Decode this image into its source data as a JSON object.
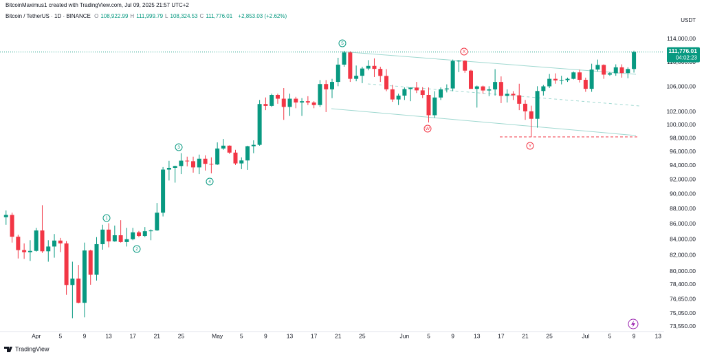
{
  "header": {
    "credit": "BitcoinMaximus1 created with TradingView.com, Jul 09, 2025 21:57 UTC+2",
    "symbol": "Bitcoin / TetherUS · 1D · BINANCE",
    "ohlc": [
      {
        "label": "O",
        "value": "108,922.99"
      },
      {
        "label": "H",
        "value": "111,999.79"
      },
      {
        "label": "L",
        "value": "108,324.53"
      },
      {
        "label": "C",
        "value": "111,776.01"
      }
    ],
    "change": "+2,853.03 (+2.62%)"
  },
  "currency": "USDT",
  "last_price_label": "111,776.01",
  "countdown": "04:02:23",
  "logo": "TradingView",
  "waves": [
    "1",
    "2",
    "3",
    "4",
    "5",
    "W",
    "X",
    "Y"
  ],
  "chart_data": {
    "type": "candlestick",
    "log_scale": true,
    "grid": false,
    "up_color": "#089981",
    "down_color": "#f23645",
    "x": [
      -5,
      -4,
      -3,
      -2,
      -1,
      0,
      1,
      2,
      3,
      4,
      5,
      6,
      7,
      8,
      9,
      10,
      11,
      12,
      13,
      14,
      15,
      16,
      17,
      18,
      19,
      20,
      21,
      22,
      23,
      24,
      25,
      26,
      27,
      28,
      29,
      30,
      31,
      32,
      33,
      34,
      35,
      36,
      37,
      38,
      39,
      40,
      41,
      42,
      43,
      44,
      45,
      46,
      47,
      48,
      49,
      50,
      51,
      52,
      53,
      54,
      55,
      56,
      57,
      58,
      59,
      60,
      61,
      62,
      63,
      64,
      65,
      66,
      67,
      68,
      69,
      70,
      71,
      72,
      73,
      74,
      75,
      76,
      77,
      78,
      79,
      80,
      81,
      82,
      83,
      84,
      85,
      86,
      87,
      88,
      89,
      90,
      91,
      92,
      93,
      94,
      95,
      96,
      97,
      98,
      99
    ],
    "open": [
      86900,
      87200,
      84350,
      82650,
      82390,
      82550,
      85160,
      82500,
      83100,
      83860,
      83500,
      78370,
      79140,
      76270,
      82600,
      79600,
      83400,
      85270,
      83760,
      84540,
      83670,
      84030,
      84920,
      84450,
      85060,
      85170,
      87500,
      93440,
      93690,
      93950,
      94720,
      94640,
      93750,
      95000,
      94260,
      94170,
      96490,
      96910,
      95890,
      94320,
      94750,
      96830,
      97030,
      103260,
      102970,
      104700,
      104100,
      102800,
      104100,
      103500,
      103700,
      103500,
      103100,
      106450,
      105600,
      106800,
      109650,
      111700,
      107300,
      107800,
      109000,
      109440,
      108940,
      107780,
      105600,
      103980,
      104590,
      105640,
      105880,
      105430,
      104700,
      101510,
      104290,
      105600,
      105740,
      110260,
      110300,
      108650,
      105670,
      106070,
      105410,
      105590,
      106790,
      104550,
      104880,
      104640,
      103300,
      102120,
      100960,
      105330,
      106080,
      107300,
      107040,
      107090,
      107300,
      108360,
      107140,
      105680,
      108830,
      109600,
      107990,
      108220,
      109200,
      108260,
      108922.99
    ],
    "high": [
      87800,
      87500,
      84600,
      83500,
      83900,
      85500,
      88500,
      83900,
      84700,
      84200,
      83800,
      81200,
      80800,
      83600,
      82700,
      84300,
      85900,
      86100,
      85800,
      86500,
      85500,
      85500,
      85100,
      85600,
      85300,
      88800,
      93800,
      94700,
      94000,
      95800,
      95300,
      95300,
      95600,
      95500,
      95200,
      97400,
      97900,
      96950,
      96300,
      95200,
      96900,
      97700,
      103900,
      104300,
      104900,
      104900,
      105800,
      104900,
      104400,
      104200,
      104500,
      103700,
      107100,
      107100,
      107300,
      110800,
      111980,
      111900,
      109500,
      109300,
      110400,
      110700,
      109300,
      108900,
      106300,
      104900,
      105900,
      105900,
      106800,
      105950,
      105900,
      105300,
      105900,
      106400,
      110500,
      110400,
      110400,
      108800,
      106200,
      106200,
      106100,
      108900,
      107700,
      105600,
      105300,
      106500,
      103900,
      103000,
      106100,
      106300,
      108100,
      108200,
      107800,
      107500,
      108500,
      108800,
      107500,
      109800,
      110500,
      109700,
      108400,
      109700,
      109700,
      109200,
      111999.79
    ],
    "low": [
      85900,
      83600,
      81600,
      81550,
      81300,
      82450,
      82300,
      81200,
      81700,
      82400,
      77200,
      74500,
      76200,
      74600,
      78400,
      78900,
      82700,
      83000,
      83700,
      83600,
      83100,
      83900,
      84300,
      84300,
      83900,
      85100,
      87000,
      91900,
      91600,
      92800,
      93900,
      93000,
      92800,
      93300,
      92900,
      94100,
      96300,
      95700,
      94100,
      93500,
      93400,
      95800,
      96900,
      102300,
      102800,
      103300,
      100800,
      101400,
      102600,
      101400,
      103100,
      102600,
      102800,
      102000,
      104200,
      106100,
      109300,
      106800,
      106900,
      106600,
      108700,
      107600,
      106800,
      105300,
      103600,
      103100,
      103900,
      103700,
      105000,
      104200,
      100400,
      101100,
      103900,
      105100,
      105300,
      108400,
      108300,
      105700,
      102700,
      104900,
      104500,
      104600,
      103400,
      103500,
      103900,
      102300,
      100800,
      98200,
      99600,
      104600,
      105800,
      106500,
      106400,
      106800,
      107200,
      106700,
      105200,
      105200,
      108500,
      107300,
      107800,
      107800,
      107500,
      107400,
      108324.53
    ],
    "close": [
      87200,
      84350,
      82650,
      82390,
      82550,
      85160,
      82500,
      83100,
      83860,
      83500,
      78370,
      79140,
      76270,
      82600,
      79600,
      83400,
      85270,
      83760,
      84540,
      83670,
      84030,
      84920,
      84450,
      85060,
      85170,
      87500,
      93440,
      93690,
      93950,
      94720,
      94640,
      93750,
      95000,
      94260,
      94170,
      96490,
      96910,
      95890,
      94320,
      94750,
      96830,
      97030,
      103260,
      102970,
      104700,
      104100,
      102800,
      104100,
      103500,
      103700,
      103500,
      103100,
      106450,
      105600,
      106800,
      109650,
      111700,
      107300,
      107800,
      109000,
      109440,
      108940,
      107780,
      105600,
      103980,
      104590,
      105640,
      105880,
      105430,
      104700,
      101510,
      104290,
      105600,
      105740,
      110260,
      110300,
      108650,
      105670,
      106070,
      105410,
      105590,
      106790,
      104550,
      104880,
      104640,
      103300,
      102120,
      100960,
      105330,
      106080,
      107300,
      107040,
      107090,
      107300,
      108360,
      107140,
      105680,
      108830,
      109600,
      107990,
      108220,
      109200,
      108260,
      108922.99,
      111776.01
    ],
    "xlim": [
      -6,
      104
    ],
    "ylim": [
      73000,
      121000
    ],
    "xticks": [
      {
        "value": 0,
        "label": "Apr"
      },
      {
        "value": 4,
        "label": "5"
      },
      {
        "value": 8,
        "label": "9"
      },
      {
        "value": 12,
        "label": "13"
      },
      {
        "value": 16,
        "label": "17"
      },
      {
        "value": 20,
        "label": "21"
      },
      {
        "value": 24,
        "label": "25"
      },
      {
        "value": 30,
        "label": "May"
      },
      {
        "value": 34,
        "label": "5"
      },
      {
        "value": 38,
        "label": "9"
      },
      {
        "value": 42,
        "label": "13"
      },
      {
        "value": 46,
        "label": "17"
      },
      {
        "value": 50,
        "label": "21"
      },
      {
        "value": 54,
        "label": "25"
      },
      {
        "value": 61,
        "label": "Jun"
      },
      {
        "value": 65,
        "label": "5"
      },
      {
        "value": 69,
        "label": "9"
      },
      {
        "value": 73,
        "label": "13"
      },
      {
        "value": 77,
        "label": "17"
      },
      {
        "value": 81,
        "label": "21"
      },
      {
        "value": 85,
        "label": "25"
      },
      {
        "value": 91,
        "label": "Jul"
      },
      {
        "value": 95,
        "label": "5"
      },
      {
        "value": 99,
        "label": "9"
      },
      {
        "value": 103,
        "label": "13"
      }
    ],
    "yticks": [
      {
        "value": 114000,
        "label": "114,000.00"
      },
      {
        "value": 110000,
        "label": "110,000.00"
      },
      {
        "value": 106000,
        "label": "106,000.00"
      },
      {
        "value": 102000,
        "label": "102,000.00"
      },
      {
        "value": 100000,
        "label": "100,000.00"
      },
      {
        "value": 98000,
        "label": "98,000.00"
      },
      {
        "value": 96000,
        "label": "96,000.00"
      },
      {
        "value": 94000,
        "label": "94,000.00"
      },
      {
        "value": 92000,
        "label": "92,000.00"
      },
      {
        "value": 90000,
        "label": "90,000.00"
      },
      {
        "value": 88000,
        "label": "88,000.00"
      },
      {
        "value": 86000,
        "label": "86,000.00"
      },
      {
        "value": 84000,
        "label": "84,000.00"
      },
      {
        "value": 82000,
        "label": "82,000.00"
      },
      {
        "value": 80000,
        "label": "80,000.00"
      },
      {
        "value": 78400,
        "label": "78,400.00"
      },
      {
        "value": 76650,
        "label": "76,650.00"
      },
      {
        "value": 75050,
        "label": "75,050.00"
      },
      {
        "value": 73550,
        "label": "73,550.00"
      }
    ]
  }
}
